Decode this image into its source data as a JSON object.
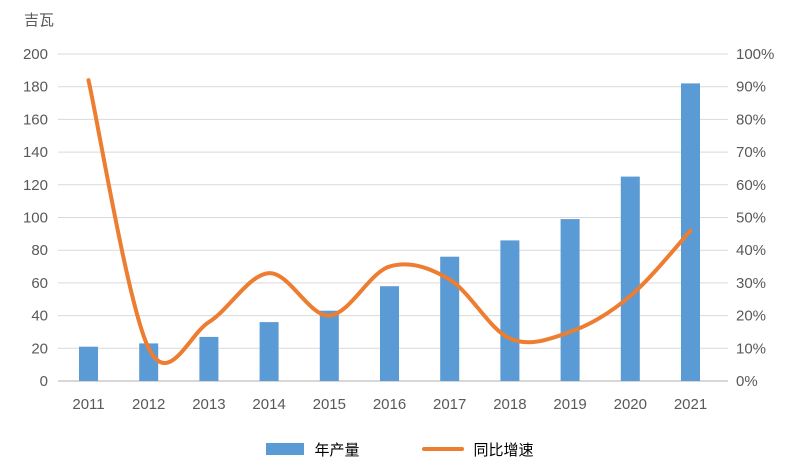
{
  "colors": {
    "bar": "#5B9BD5",
    "line": "#ED7D31",
    "grid": "#D9D9D9",
    "axis_line": "#BFBFBF",
    "text": "#595959"
  },
  "legend": {
    "bar_label": "年产量",
    "line_label": "同比增速"
  },
  "chart_data": {
    "type": "combo-bar-line",
    "title": "",
    "categories": [
      "2011",
      "2012",
      "2013",
      "2014",
      "2015",
      "2016",
      "2017",
      "2018",
      "2019",
      "2020",
      "2021"
    ],
    "series": [
      {
        "name": "年产量",
        "type": "bar",
        "axis": "left",
        "unit": "吉瓦",
        "values": [
          21,
          23,
          27,
          36,
          43,
          58,
          76,
          86,
          99,
          125,
          182
        ]
      },
      {
        "name": "同比增速",
        "type": "line",
        "axis": "right",
        "unit": "%",
        "values": [
          92,
          10,
          18,
          33,
          20,
          35,
          31,
          13,
          15,
          26,
          46
        ]
      }
    ],
    "left_axis": {
      "title": "吉瓦",
      "min": 0,
      "max": 200,
      "step": 20,
      "tick_labels": [
        "0",
        "20",
        "40",
        "60",
        "80",
        "100",
        "120",
        "140",
        "160",
        "180",
        "200"
      ]
    },
    "right_axis": {
      "min": 0,
      "max": 100,
      "step": 10,
      "tick_labels": [
        "0%",
        "10%",
        "20%",
        "30%",
        "40%",
        "50%",
        "60%",
        "70%",
        "80%",
        "90%",
        "100%"
      ]
    },
    "gridlines": "horizontal",
    "legend_position": "bottom",
    "smooth_line": true
  }
}
